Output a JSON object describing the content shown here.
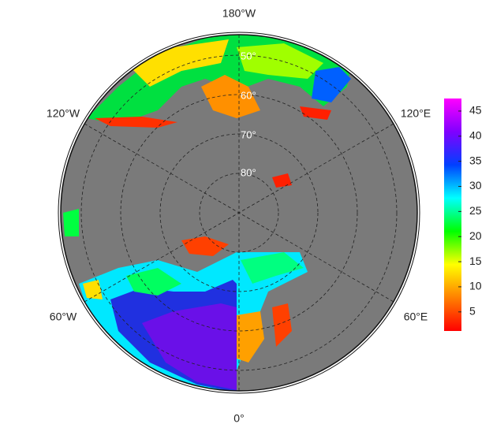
{
  "map": {
    "longitude_labels": [
      "180°W",
      "120°W",
      "120°E",
      "60°W",
      "60°E",
      "0°"
    ],
    "latitude_labels": [
      "50°",
      "60°",
      "70°",
      "80°"
    ],
    "colorbar": {
      "range": [
        1.2,
        47.5
      ],
      "ticks": [
        5,
        10,
        15,
        20,
        25,
        30,
        35,
        40,
        45
      ],
      "colors": [
        "#ff0000",
        "#ff8000",
        "#ffff00",
        "#00ff00",
        "#00ffff",
        "#0040ff",
        "#8000ff",
        "#ff00ff"
      ]
    }
  }
}
